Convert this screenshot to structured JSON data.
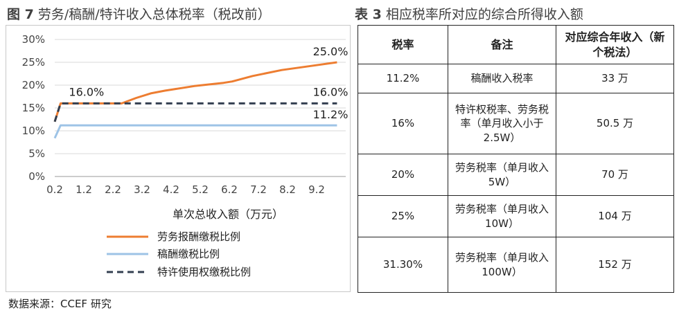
{
  "captions": {
    "left": {
      "label": "图 7",
      "text": "劳务/稿酬/特许收入总体税率（税改前）"
    },
    "right": {
      "label": "表 3",
      "text": "相应税率所对应的综合所得收入额"
    }
  },
  "chart_data": {
    "type": "line",
    "xlabel": "单次总收入额（万元）",
    "ylabel": "",
    "x_ticks": [
      "0.2",
      "1.2",
      "2.2",
      "3.2",
      "4.2",
      "5.2",
      "6.2",
      "7.2",
      "8.2",
      "9.2"
    ],
    "y_ticks": [
      "0%",
      "5%",
      "10%",
      "15%",
      "20%",
      "25%",
      "30%"
    ],
    "xlim": [
      0.2,
      10.2
    ],
    "ylim": [
      0,
      30
    ],
    "grid": "horizontal",
    "legend_position": "bottom",
    "series": [
      {
        "name": "劳务报酬缴税比例",
        "color": "#ed7d31",
        "style": "solid",
        "points": [
          [
            0.2,
            12.0
          ],
          [
            0.4,
            16.0
          ],
          [
            2.5,
            16.0
          ],
          [
            3.0,
            17.2
          ],
          [
            3.5,
            18.2
          ],
          [
            4.0,
            18.8
          ],
          [
            5.0,
            19.8
          ],
          [
            6.0,
            20.5
          ],
          [
            6.3,
            20.8
          ],
          [
            7.0,
            22.0
          ],
          [
            8.0,
            23.3
          ],
          [
            9.0,
            24.2
          ],
          [
            9.9,
            25.0
          ]
        ],
        "labels": [
          {
            "x": 0.4,
            "text": "16.0%"
          },
          {
            "x": 9.9,
            "text": "25.0%"
          }
        ]
      },
      {
        "name": "稿酬缴税比例",
        "color": "#9dc3e6",
        "style": "solid",
        "points": [
          [
            0.2,
            8.4
          ],
          [
            0.4,
            11.2
          ],
          [
            9.9,
            11.2
          ]
        ],
        "labels": [
          {
            "x": 9.9,
            "text": "11.2%"
          }
        ]
      },
      {
        "name": "特许使用权缴税比例",
        "color": "#333f50",
        "style": "dashed",
        "points": [
          [
            0.2,
            12.0
          ],
          [
            0.4,
            16.0
          ],
          [
            9.9,
            16.0
          ]
        ],
        "labels": [
          {
            "x": 9.9,
            "text": "16.0%"
          }
        ]
      }
    ]
  },
  "table": {
    "headers": [
      "税率",
      "备注",
      "对应综合年收入（新个税法）"
    ],
    "rows": [
      [
        "11.2%",
        "稿酬收入税率",
        "33 万"
      ],
      [
        "16%",
        "特许权税率、劳务税率（单月收入小于 2.5W）",
        "50.5 万"
      ],
      [
        "20%",
        "劳务税率（单月收入 5W）",
        "70 万"
      ],
      [
        "25%",
        "劳务税率（单月收入 10W）",
        "104 万"
      ],
      [
        "31.30%",
        "劳务税率（单月收入 100W）",
        "152 万"
      ]
    ]
  },
  "source": "数据来源：CCEF 研究"
}
